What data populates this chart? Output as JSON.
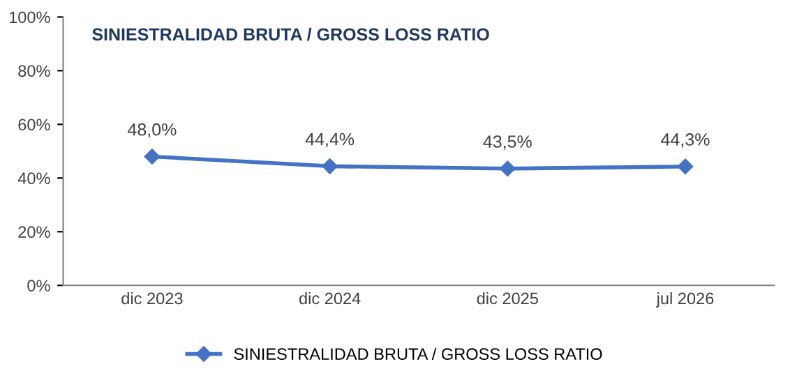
{
  "chart_data": {
    "type": "line",
    "title": "SINIESTRALIDAD BRUTA / GROSS LOSS RATIO",
    "categories": [
      "dic 2023",
      "dic 2024",
      "dic 2025",
      "jul 2026"
    ],
    "series": [
      {
        "name": "SINIESTRALIDAD BRUTA / GROSS LOSS RATIO",
        "color": "#4472c4",
        "values": [
          48.0,
          44.4,
          43.5,
          44.3
        ],
        "value_labels": [
          "48,0%",
          "44,4%",
          "43,5%",
          "44,3%"
        ]
      }
    ],
    "ylim": [
      0,
      100
    ],
    "yticks": [
      {
        "value": 0,
        "label": "0%"
      },
      {
        "value": 20,
        "label": "20%"
      },
      {
        "value": 40,
        "label": "40%"
      },
      {
        "value": 60,
        "label": "60%"
      },
      {
        "value": 80,
        "label": "80%"
      },
      {
        "value": 100,
        "label": "100%"
      }
    ],
    "grid": false,
    "legend": "bottom",
    "marker": "diamond",
    "line_style": "solid"
  }
}
